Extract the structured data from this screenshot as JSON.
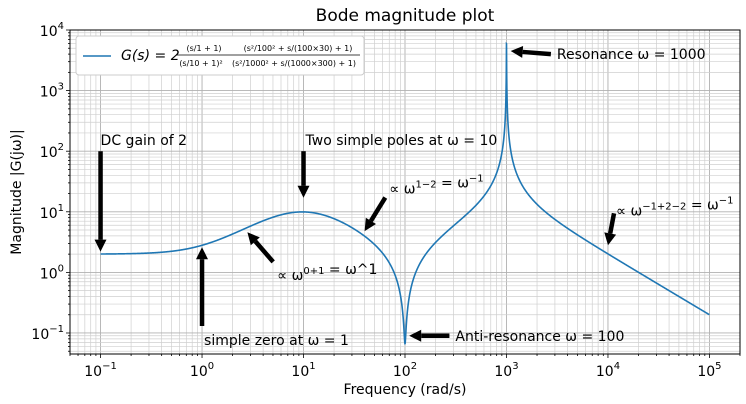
{
  "chart_data": {
    "type": "line",
    "title": "Bode magnitude plot",
    "xlabel": "Frequency (rad/s)",
    "ylabel": "Magnitude |G(jω)|",
    "xscale": "log",
    "yscale": "log",
    "xlim": [
      0.05,
      200000
    ],
    "ylim": [
      0.045,
      10000
    ],
    "grid": "major-and-minor",
    "x_ticks": [
      {
        "value": 0.1,
        "base": "10",
        "exp": "−1"
      },
      {
        "value": 1,
        "base": "10",
        "exp": "0"
      },
      {
        "value": 10,
        "base": "10",
        "exp": "1"
      },
      {
        "value": 100,
        "base": "10",
        "exp": "2"
      },
      {
        "value": 1000,
        "base": "10",
        "exp": "3"
      },
      {
        "value": 10000,
        "base": "10",
        "exp": "4"
      },
      {
        "value": 100000,
        "base": "10",
        "exp": "5"
      }
    ],
    "y_ticks": [
      {
        "value": 0.1,
        "base": "10",
        "exp": "−1"
      },
      {
        "value": 1,
        "base": "10",
        "exp": "0"
      },
      {
        "value": 10,
        "base": "10",
        "exp": "1"
      },
      {
        "value": 100,
        "base": "10",
        "exp": "2"
      },
      {
        "value": 1000,
        "base": "10",
        "exp": "3"
      },
      {
        "value": 10000,
        "base": "10",
        "exp": "4"
      }
    ],
    "legend": {
      "position": "upper-left",
      "lhs": "G(s) = 2",
      "num_a": "(s/1 + 1)",
      "num_b": "(s²/100² + s/(100×30) + 1)",
      "den_a": "(s/10 + 1)²",
      "den_b": "(s²/1000² + s/(1000×300) + 1)"
    },
    "series": [
      {
        "color": "#1f77b4",
        "formula": "|2 (jw/1+1)(1 - w²/100² + jw/3000) / ((jw/10+1)² (1 - w²/1000² + jw/300000))|",
        "x_range": [
          0.1,
          100000
        ]
      }
    ],
    "annotations": [
      {
        "text": "DC gain of 2",
        "x": 0.1,
        "y": 2.2,
        "text_x": 0.1,
        "text_y": 100
      },
      {
        "text": "simple zero at ω = 1",
        "x": 1,
        "y": 2.6,
        "text_x": 1,
        "text_y": 0.1
      },
      {
        "text": "Two simple poles at ω = 10",
        "x": 10,
        "y": 17,
        "text_x": 10,
        "text_y": 100
      },
      {
        "text": "∝ ω^(0+1) = ω^1",
        "x": 2.8,
        "y": 4.6,
        "text_x": 5.5,
        "text_y": 1.1
      },
      {
        "text": "∝ ω^(1−2) = ω^(−1)",
        "x": 40,
        "y": 4.8,
        "text_x": 70,
        "text_y": 20
      },
      {
        "text": "Resonance ω = 1000",
        "x": 1100,
        "y": 4500,
        "text_x": 3000,
        "text_y": 4000
      },
      {
        "text": "Anti-resonance ω = 100",
        "x": 110,
        "y": 0.09,
        "text_x": 300,
        "text_y": 0.09
      },
      {
        "text": "∝ ω^(−1+2−2) = ω^(−1)",
        "x": 10000,
        "y": 2.8,
        "text_x": 12000,
        "text_y": 11
      }
    ]
  }
}
